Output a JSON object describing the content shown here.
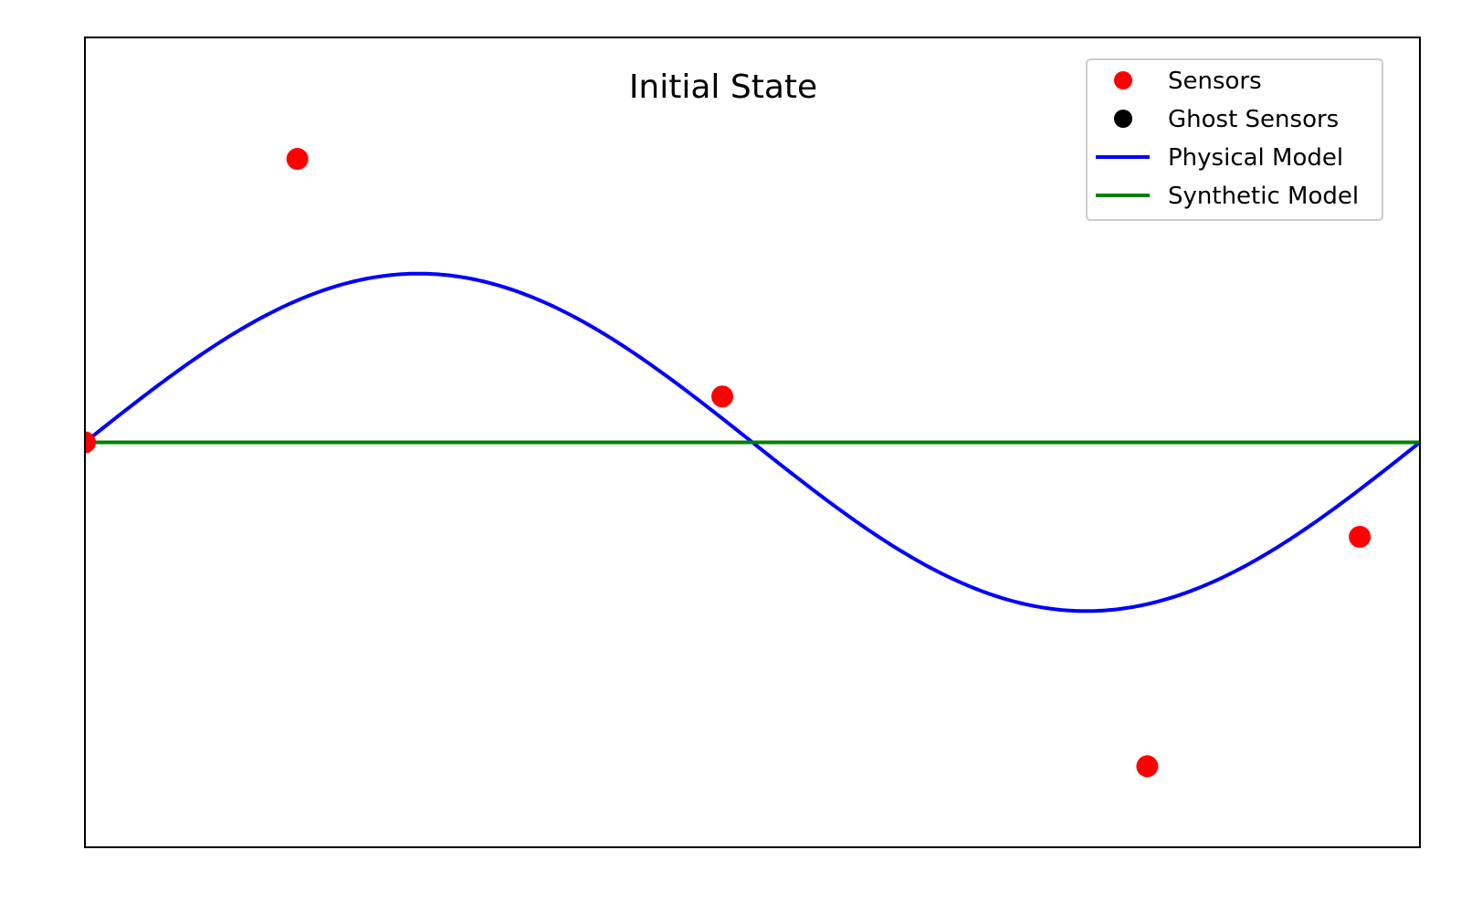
{
  "chart_data": {
    "type": "line",
    "title": "Initial State",
    "xlabel": "",
    "ylabel": "",
    "xlim": [
      0,
      6.283185
    ],
    "ylim": [
      -1.5,
      1.5
    ],
    "axis_ticks_visible": false,
    "grid": false,
    "legend_position": "top-right",
    "series": [
      {
        "name": "Sensors",
        "kind": "scatter",
        "color": "#ff0000",
        "points": [
          {
            "x": 0.0,
            "y": 0.0
          },
          {
            "x": 1.0,
            "y": 1.05
          },
          {
            "x": 3.0,
            "y": 0.17
          },
          {
            "x": 5.0,
            "y": -1.2
          },
          {
            "x": 6.0,
            "y": -0.35
          }
        ]
      },
      {
        "name": "Ghost Sensors",
        "kind": "scatter",
        "color": "#000000",
        "points": []
      },
      {
        "name": "Physical Model",
        "kind": "line",
        "function": "sin",
        "amplitude": 0.625,
        "color": "#0000ff"
      },
      {
        "name": "Synthetic Model",
        "kind": "line",
        "function": "constant",
        "value": 0.0,
        "color": "#008000"
      }
    ]
  }
}
